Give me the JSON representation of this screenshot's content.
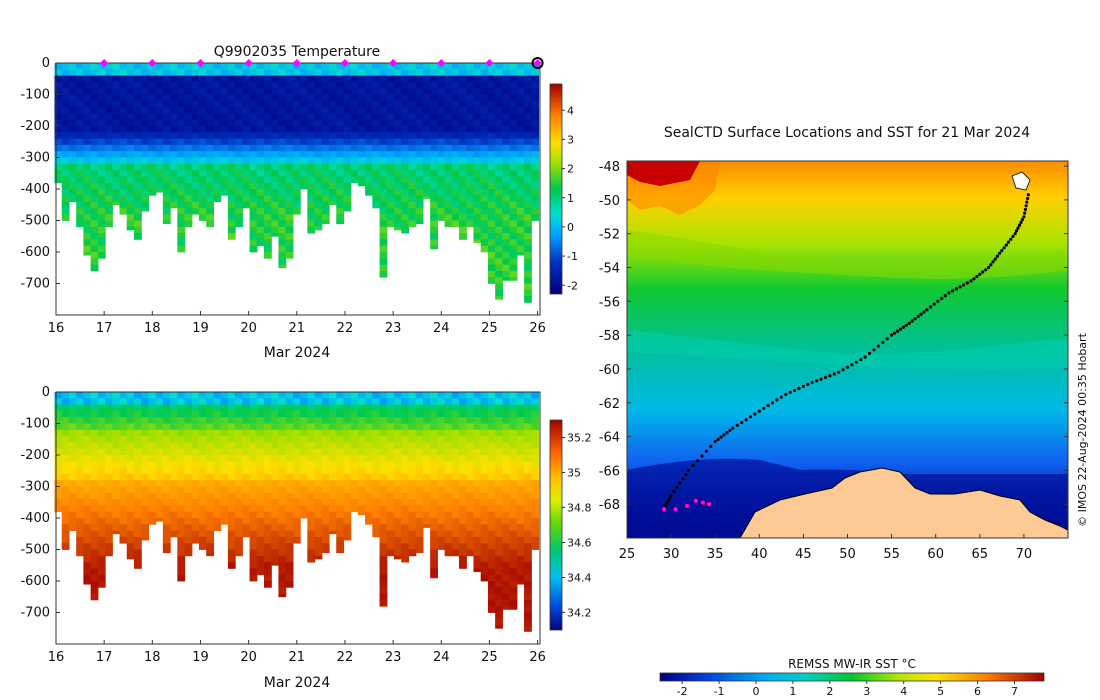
{
  "chart_data": [
    {
      "type": "heatmap",
      "title": "Q9902035  Temperature",
      "xlabel": "Mar 2024",
      "ylabel": "",
      "x_ticks": [
        "16",
        "17",
        "18",
        "19",
        "20",
        "21",
        "22",
        "23",
        "24",
        "25",
        "26"
      ],
      "xlim": [
        16,
        26.05
      ],
      "y_ticks": [
        0,
        -100,
        -200,
        -300,
        -400,
        -500,
        -600,
        -700
      ],
      "ylim": [
        -800,
        0
      ],
      "colorbar": {
        "ticks": [
          -2,
          -1,
          0,
          1,
          2,
          3,
          4
        ],
        "range": [
          -2.3,
          4.9
        ]
      },
      "profile_times": [
        16.05,
        16.2,
        16.35,
        16.5,
        16.65,
        16.8,
        16.95,
        17.1,
        17.25,
        17.4,
        17.55,
        17.7,
        17.85,
        18.0,
        18.15,
        18.3,
        18.45,
        18.6,
        18.75,
        18.9,
        19.05,
        19.2,
        19.35,
        19.5,
        19.65,
        19.8,
        19.95,
        20.1,
        20.25,
        20.4,
        20.55,
        20.7,
        20.85,
        21.0,
        21.15,
        21.3,
        21.45,
        21.6,
        21.75,
        21.9,
        22.05,
        22.2,
        22.35,
        22.5,
        22.65,
        22.8,
        22.95,
        23.1,
        23.25,
        23.4,
        23.55,
        23.7,
        23.85,
        24.0,
        24.15,
        24.3,
        24.45,
        24.6,
        24.75,
        24.9,
        25.05,
        25.2,
        25.35,
        25.5,
        25.65,
        25.8,
        25.95
      ],
      "profile_max_depths": [
        380,
        500,
        440,
        520,
        610,
        660,
        620,
        520,
        450,
        480,
        530,
        560,
        470,
        420,
        410,
        510,
        460,
        600,
        520,
        480,
        500,
        520,
        440,
        420,
        560,
        520,
        460,
        600,
        580,
        620,
        550,
        650,
        620,
        480,
        400,
        540,
        530,
        510,
        450,
        510,
        470,
        380,
        390,
        420,
        460,
        680,
        520,
        530,
        540,
        520,
        510,
        430,
        590,
        500,
        520,
        520,
        560,
        520,
        570,
        600,
        700,
        750,
        690,
        690,
        610,
        760,
        500
      ],
      "markers": {
        "color": "#ff00ff",
        "times": [
          17,
          18,
          19,
          20,
          21,
          22,
          23,
          24,
          25,
          26
        ]
      }
    },
    {
      "type": "heatmap",
      "title": "",
      "xlabel": "Mar 2024",
      "ylabel": "",
      "x_ticks": [
        "16",
        "17",
        "18",
        "19",
        "20",
        "21",
        "22",
        "23",
        "24",
        "25",
        "26"
      ],
      "xlim": [
        16,
        26.05
      ],
      "y_ticks": [
        0,
        -100,
        -200,
        -300,
        -400,
        -500,
        -600,
        -700
      ],
      "ylim": [
        -800,
        0
      ],
      "colorbar": {
        "ticks": [
          "34.2",
          "34.4",
          "34.6",
          "34.8",
          "35",
          "35.2"
        ],
        "range": [
          34.1,
          35.3
        ]
      }
    },
    {
      "type": "heatmap",
      "title": "SealCTD Surface Locations and SST for 21 Mar 2024",
      "xlabel": "",
      "ylabel": "",
      "x_ticks": [
        "25",
        "30",
        "35",
        "40",
        "45",
        "50",
        "55",
        "60",
        "65",
        "70"
      ],
      "xlim": [
        25,
        75
      ],
      "y_ticks": [
        "-48",
        "-50",
        "-52",
        "-54",
        "-56",
        "-58",
        "-60",
        "-62",
        "-64",
        "-66",
        "-68"
      ],
      "ylim": [
        -70,
        -47.7
      ],
      "colorbar": {
        "label": "REMSS MW-IR SST °C",
        "ticks": [
          "-2",
          "-1",
          "0",
          "1",
          "2",
          "3",
          "4",
          "5",
          "6",
          "7"
        ],
        "range": [
          -2.6,
          7.8
        ]
      },
      "track": [
        [
          70.5,
          -49.7
        ],
        [
          70,
          -51
        ],
        [
          69,
          -52
        ],
        [
          67.5,
          -53
        ],
        [
          66,
          -54
        ],
        [
          64,
          -54.8
        ],
        [
          61.5,
          -55.5
        ],
        [
          59,
          -56.5
        ],
        [
          57,
          -57.3
        ],
        [
          55,
          -58
        ],
        [
          52,
          -59.3
        ],
        [
          49,
          -60.2
        ],
        [
          46,
          -60.8
        ],
        [
          43,
          -61.5
        ],
        [
          40,
          -62.5
        ],
        [
          37,
          -63.5
        ],
        [
          35,
          -64.3
        ],
        [
          32,
          -66
        ],
        [
          30,
          -67.5
        ],
        [
          29,
          -68.4
        ]
      ],
      "recent_positions": [
        [
          29.2,
          -68.3
        ],
        [
          30.5,
          -68.3
        ],
        [
          31.8,
          -68.1
        ],
        [
          32.8,
          -67.8
        ],
        [
          33.6,
          -67.9
        ],
        [
          34.3,
          -68.0
        ]
      ],
      "credit": "© IMOS 22-Aug-2024 00:35 Hobart"
    }
  ]
}
